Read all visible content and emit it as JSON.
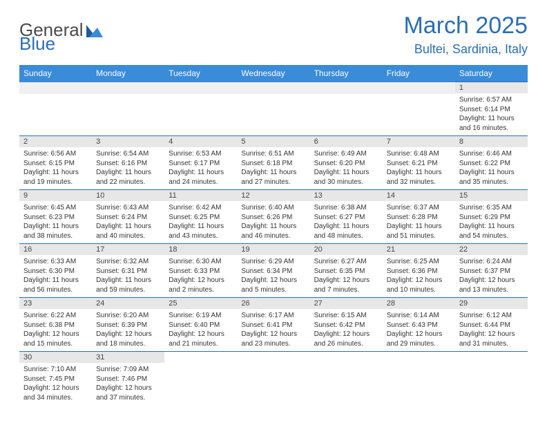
{
  "logo": {
    "text1": "General",
    "text2": "Blue"
  },
  "header": {
    "title": "March 2025",
    "location": "Bultei, Sardinia, Italy"
  },
  "daynames": [
    "Sunday",
    "Monday",
    "Tuesday",
    "Wednesday",
    "Thursday",
    "Friday",
    "Saturday"
  ],
  "colors": {
    "accent": "#2a6db5",
    "header_bg": "#3a8bd8",
    "daynum_bg": "#e7e7e7",
    "blank_bg": "#f0f0f0"
  },
  "weeks": [
    [
      null,
      null,
      null,
      null,
      null,
      null,
      {
        "n": "1",
        "sr": "Sunrise: 6:57 AM",
        "ss": "Sunset: 6:14 PM",
        "dl1": "Daylight: 11 hours",
        "dl2": "and 16 minutes."
      }
    ],
    [
      {
        "n": "2",
        "sr": "Sunrise: 6:56 AM",
        "ss": "Sunset: 6:15 PM",
        "dl1": "Daylight: 11 hours",
        "dl2": "and 19 minutes."
      },
      {
        "n": "3",
        "sr": "Sunrise: 6:54 AM",
        "ss": "Sunset: 6:16 PM",
        "dl1": "Daylight: 11 hours",
        "dl2": "and 22 minutes."
      },
      {
        "n": "4",
        "sr": "Sunrise: 6:53 AM",
        "ss": "Sunset: 6:17 PM",
        "dl1": "Daylight: 11 hours",
        "dl2": "and 24 minutes."
      },
      {
        "n": "5",
        "sr": "Sunrise: 6:51 AM",
        "ss": "Sunset: 6:18 PM",
        "dl1": "Daylight: 11 hours",
        "dl2": "and 27 minutes."
      },
      {
        "n": "6",
        "sr": "Sunrise: 6:49 AM",
        "ss": "Sunset: 6:20 PM",
        "dl1": "Daylight: 11 hours",
        "dl2": "and 30 minutes."
      },
      {
        "n": "7",
        "sr": "Sunrise: 6:48 AM",
        "ss": "Sunset: 6:21 PM",
        "dl1": "Daylight: 11 hours",
        "dl2": "and 32 minutes."
      },
      {
        "n": "8",
        "sr": "Sunrise: 6:46 AM",
        "ss": "Sunset: 6:22 PM",
        "dl1": "Daylight: 11 hours",
        "dl2": "and 35 minutes."
      }
    ],
    [
      {
        "n": "9",
        "sr": "Sunrise: 6:45 AM",
        "ss": "Sunset: 6:23 PM",
        "dl1": "Daylight: 11 hours",
        "dl2": "and 38 minutes."
      },
      {
        "n": "10",
        "sr": "Sunrise: 6:43 AM",
        "ss": "Sunset: 6:24 PM",
        "dl1": "Daylight: 11 hours",
        "dl2": "and 40 minutes."
      },
      {
        "n": "11",
        "sr": "Sunrise: 6:42 AM",
        "ss": "Sunset: 6:25 PM",
        "dl1": "Daylight: 11 hours",
        "dl2": "and 43 minutes."
      },
      {
        "n": "12",
        "sr": "Sunrise: 6:40 AM",
        "ss": "Sunset: 6:26 PM",
        "dl1": "Daylight: 11 hours",
        "dl2": "and 46 minutes."
      },
      {
        "n": "13",
        "sr": "Sunrise: 6:38 AM",
        "ss": "Sunset: 6:27 PM",
        "dl1": "Daylight: 11 hours",
        "dl2": "and 48 minutes."
      },
      {
        "n": "14",
        "sr": "Sunrise: 6:37 AM",
        "ss": "Sunset: 6:28 PM",
        "dl1": "Daylight: 11 hours",
        "dl2": "and 51 minutes."
      },
      {
        "n": "15",
        "sr": "Sunrise: 6:35 AM",
        "ss": "Sunset: 6:29 PM",
        "dl1": "Daylight: 11 hours",
        "dl2": "and 54 minutes."
      }
    ],
    [
      {
        "n": "16",
        "sr": "Sunrise: 6:33 AM",
        "ss": "Sunset: 6:30 PM",
        "dl1": "Daylight: 11 hours",
        "dl2": "and 56 minutes."
      },
      {
        "n": "17",
        "sr": "Sunrise: 6:32 AM",
        "ss": "Sunset: 6:31 PM",
        "dl1": "Daylight: 11 hours",
        "dl2": "and 59 minutes."
      },
      {
        "n": "18",
        "sr": "Sunrise: 6:30 AM",
        "ss": "Sunset: 6:33 PM",
        "dl1": "Daylight: 12 hours",
        "dl2": "and 2 minutes."
      },
      {
        "n": "19",
        "sr": "Sunrise: 6:29 AM",
        "ss": "Sunset: 6:34 PM",
        "dl1": "Daylight: 12 hours",
        "dl2": "and 5 minutes."
      },
      {
        "n": "20",
        "sr": "Sunrise: 6:27 AM",
        "ss": "Sunset: 6:35 PM",
        "dl1": "Daylight: 12 hours",
        "dl2": "and 7 minutes."
      },
      {
        "n": "21",
        "sr": "Sunrise: 6:25 AM",
        "ss": "Sunset: 6:36 PM",
        "dl1": "Daylight: 12 hours",
        "dl2": "and 10 minutes."
      },
      {
        "n": "22",
        "sr": "Sunrise: 6:24 AM",
        "ss": "Sunset: 6:37 PM",
        "dl1": "Daylight: 12 hours",
        "dl2": "and 13 minutes."
      }
    ],
    [
      {
        "n": "23",
        "sr": "Sunrise: 6:22 AM",
        "ss": "Sunset: 6:38 PM",
        "dl1": "Daylight: 12 hours",
        "dl2": "and 15 minutes."
      },
      {
        "n": "24",
        "sr": "Sunrise: 6:20 AM",
        "ss": "Sunset: 6:39 PM",
        "dl1": "Daylight: 12 hours",
        "dl2": "and 18 minutes."
      },
      {
        "n": "25",
        "sr": "Sunrise: 6:19 AM",
        "ss": "Sunset: 6:40 PM",
        "dl1": "Daylight: 12 hours",
        "dl2": "and 21 minutes."
      },
      {
        "n": "26",
        "sr": "Sunrise: 6:17 AM",
        "ss": "Sunset: 6:41 PM",
        "dl1": "Daylight: 12 hours",
        "dl2": "and 23 minutes."
      },
      {
        "n": "27",
        "sr": "Sunrise: 6:15 AM",
        "ss": "Sunset: 6:42 PM",
        "dl1": "Daylight: 12 hours",
        "dl2": "and 26 minutes."
      },
      {
        "n": "28",
        "sr": "Sunrise: 6:14 AM",
        "ss": "Sunset: 6:43 PM",
        "dl1": "Daylight: 12 hours",
        "dl2": "and 29 minutes."
      },
      {
        "n": "29",
        "sr": "Sunrise: 6:12 AM",
        "ss": "Sunset: 6:44 PM",
        "dl1": "Daylight: 12 hours",
        "dl2": "and 31 minutes."
      }
    ],
    [
      {
        "n": "30",
        "sr": "Sunrise: 7:10 AM",
        "ss": "Sunset: 7:45 PM",
        "dl1": "Daylight: 12 hours",
        "dl2": "and 34 minutes."
      },
      {
        "n": "31",
        "sr": "Sunrise: 7:09 AM",
        "ss": "Sunset: 7:46 PM",
        "dl1": "Daylight: 12 hours",
        "dl2": "and 37 minutes."
      },
      null,
      null,
      null,
      null,
      null
    ]
  ]
}
